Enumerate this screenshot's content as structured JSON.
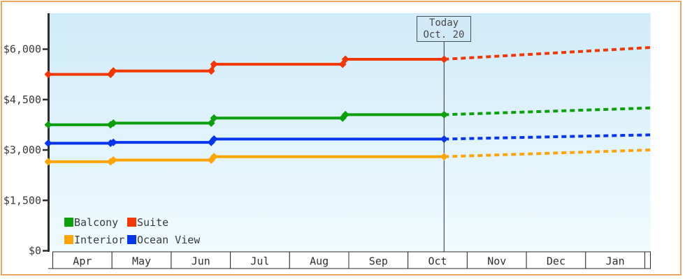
{
  "frame": {
    "border_color": "#eba661"
  },
  "today_box": {
    "line1": "Today",
    "line2": "Oct. 20"
  },
  "legend": {
    "items": [
      {
        "label": "Balcony",
        "color": "#0ca00c"
      },
      {
        "label": "Suite",
        "color": "#f23705"
      },
      {
        "label": "Interior",
        "color": "#ffa405"
      },
      {
        "label": "Ocean View",
        "color": "#0536ee"
      }
    ]
  },
  "chart_data": {
    "type": "line",
    "title": "",
    "x_unit": "months_since_Apr_1",
    "x_months": [
      "Apr",
      "May",
      "Jun",
      "Jul",
      "Aug",
      "Sep",
      "Oct",
      "Nov",
      "Dec",
      "Jan"
    ],
    "y_ticks": [
      {
        "value": 6000,
        "label": "$6,000"
      },
      {
        "value": 4500,
        "label": "$4,500"
      },
      {
        "value": 3000,
        "label": "$3,000"
      },
      {
        "value": 1500,
        "label": "$1,500"
      },
      {
        "value": 0,
        "label": "$0"
      }
    ],
    "ylim": [
      0,
      7050
    ],
    "grid": false,
    "legend_position": "bottom-left",
    "today": {
      "label_line1": "Today",
      "label_line2": "Oct. 20",
      "month_offset": 6.61
    },
    "forecast_end_month_offset": 10.09,
    "series": [
      {
        "name": "Balcony",
        "color": "#0ca00c",
        "history": [
          [
            0,
            3750
          ],
          [
            1,
            3750
          ],
          [
            1,
            3800
          ],
          [
            2.7,
            3800
          ],
          [
            2.7,
            3950
          ],
          [
            4.92,
            3950
          ],
          [
            4.92,
            4050
          ],
          [
            6.61,
            4050
          ]
        ],
        "forecast": [
          [
            6.61,
            4050
          ],
          [
            10.09,
            4250
          ]
        ]
      },
      {
        "name": "Suite",
        "color": "#f23705",
        "history": [
          [
            0,
            5250
          ],
          [
            1,
            5250
          ],
          [
            1,
            5350
          ],
          [
            2.7,
            5350
          ],
          [
            2.7,
            5550
          ],
          [
            4.92,
            5550
          ],
          [
            4.92,
            5700
          ],
          [
            6.61,
            5700
          ]
        ],
        "forecast": [
          [
            6.61,
            5700
          ],
          [
            10.09,
            6050
          ]
        ]
      },
      {
        "name": "Interior",
        "color": "#ffa405",
        "history": [
          [
            0,
            2650
          ],
          [
            1,
            2650
          ],
          [
            1,
            2700
          ],
          [
            2.7,
            2700
          ],
          [
            2.7,
            2800
          ],
          [
            6.61,
            2800
          ]
        ],
        "forecast": [
          [
            6.61,
            2800
          ],
          [
            10.09,
            3000
          ]
        ]
      },
      {
        "name": "Ocean View",
        "color": "#0536ee",
        "history": [
          [
            0,
            3200
          ],
          [
            1,
            3200
          ],
          [
            1,
            3225
          ],
          [
            2.7,
            3225
          ],
          [
            2.7,
            3325
          ],
          [
            6.61,
            3325
          ]
        ],
        "forecast": [
          [
            6.61,
            3325
          ],
          [
            10.09,
            3450
          ]
        ]
      }
    ]
  }
}
